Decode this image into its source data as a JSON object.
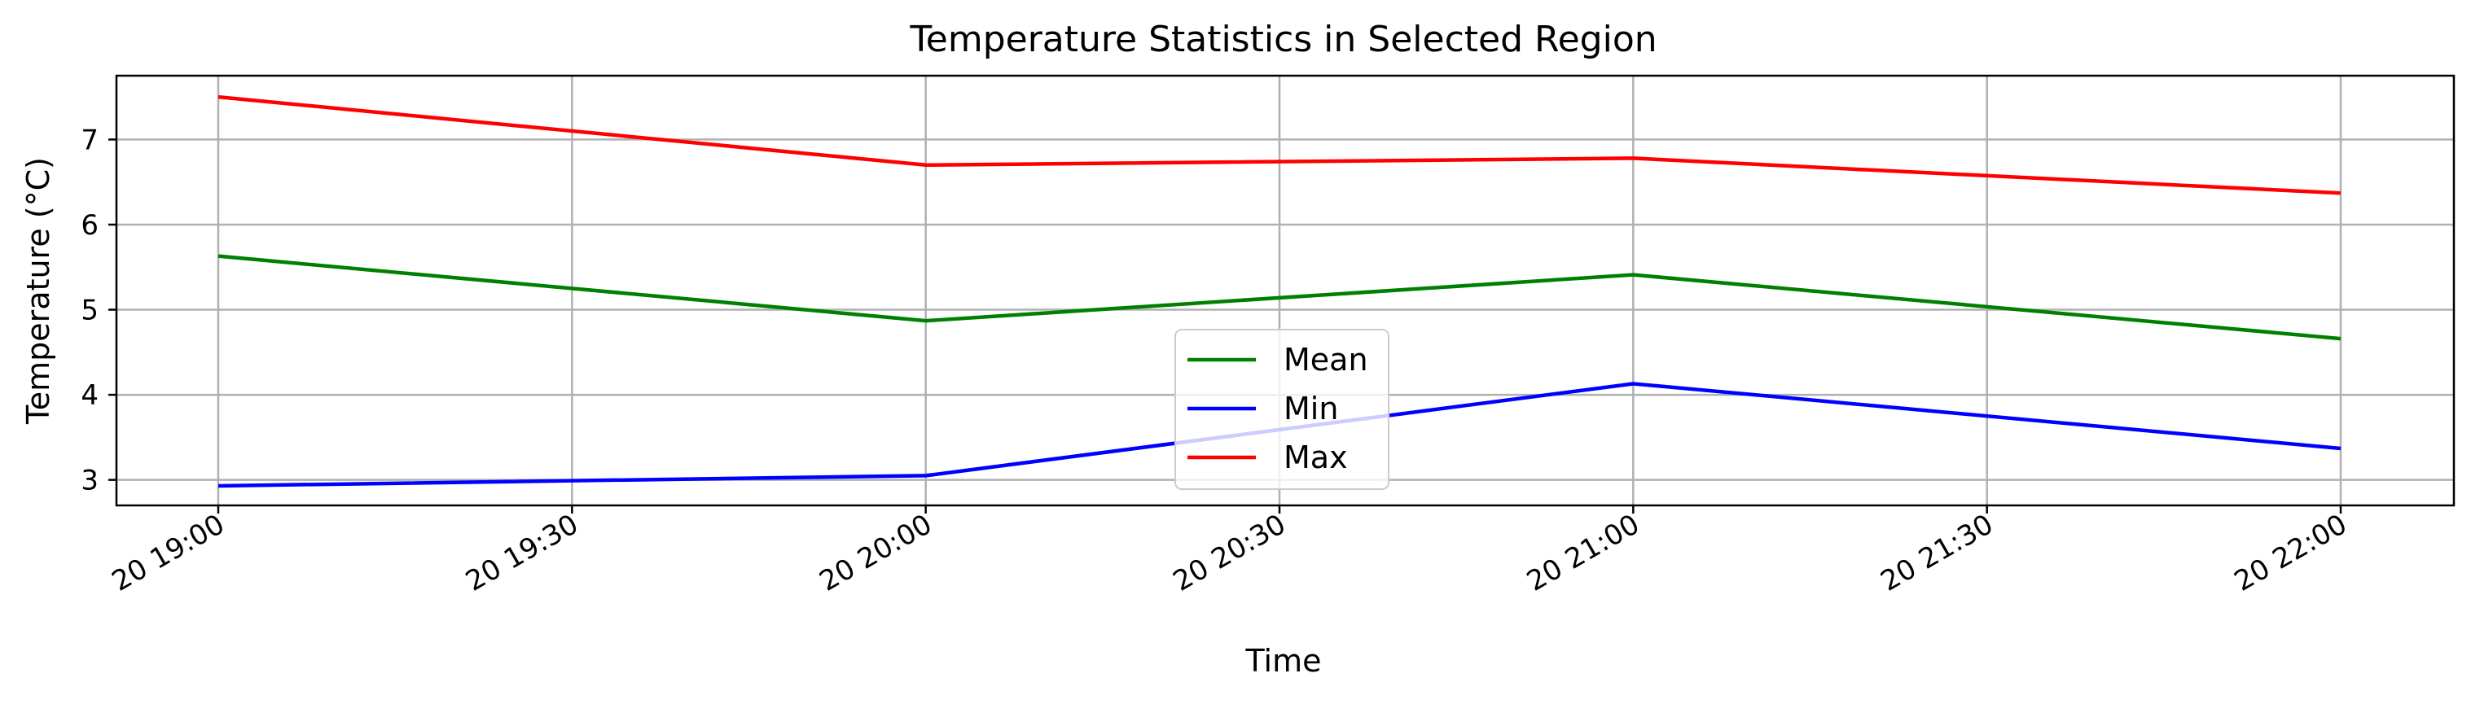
{
  "chart_data": {
    "type": "line",
    "title": "Temperature Statistics in Selected Region",
    "xlabel": "Time",
    "ylabel": "Temperature (°C)",
    "x": [
      "20 19:00",
      "20 20:00",
      "20 21:00",
      "20 22:00"
    ],
    "x_ticks": [
      "20 19:00",
      "20 19:30",
      "20 20:00",
      "20 20:30",
      "20 21:00",
      "20 21:30",
      "20 22:00"
    ],
    "y_ticks": [
      3,
      4,
      5,
      6,
      7
    ],
    "ylim": [
      2.7,
      7.75
    ],
    "grid": true,
    "legend_position": "bottom-center",
    "series": [
      {
        "name": "Mean",
        "color": "#008000",
        "values": [
          5.63,
          4.87,
          5.41,
          4.66
        ]
      },
      {
        "name": "Min",
        "color": "#0000ff",
        "values": [
          2.93,
          3.05,
          4.13,
          3.37
        ]
      },
      {
        "name": "Max",
        "color": "#ff0000",
        "values": [
          7.5,
          6.7,
          6.78,
          6.37
        ]
      }
    ]
  }
}
